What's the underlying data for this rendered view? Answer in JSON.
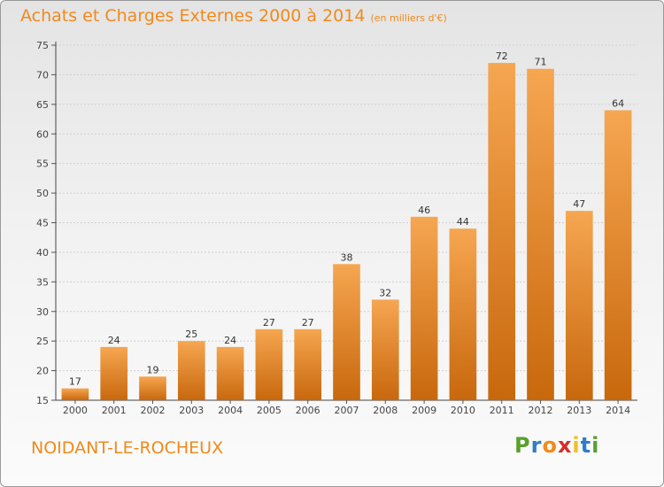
{
  "title": "Achats et Charges Externes 2000 à 2014",
  "subtitle": "(en milliers d'€)",
  "place": "NOIDANT-LE-ROCHEUX",
  "logo": {
    "letters": [
      "P",
      "r",
      "o",
      "x",
      "i",
      "t",
      "i"
    ],
    "colors": [
      "#5aa02c",
      "#2f7dc8",
      "#f08c1a",
      "#d2302a",
      "#f0c020",
      "#2f7dc8",
      "#5aa02c"
    ]
  },
  "colors": {
    "bar_top": "#f6a651",
    "bar_bottom": "#c8680d",
    "title": "#ef8a1c"
  },
  "chart_data": {
    "type": "bar",
    "categories": [
      "2000",
      "2001",
      "2002",
      "2003",
      "2004",
      "2005",
      "2006",
      "2007",
      "2008",
      "2009",
      "2010",
      "2011",
      "2012",
      "2013",
      "2014"
    ],
    "values": [
      17,
      24,
      19,
      25,
      24,
      27,
      27,
      38,
      32,
      46,
      44,
      72,
      71,
      47,
      64
    ],
    "title": "Achats et Charges Externes 2000 à 2014",
    "ylim": [
      15,
      75
    ],
    "yticks": [
      15,
      20,
      25,
      30,
      35,
      40,
      45,
      50,
      55,
      60,
      65,
      70,
      75
    ],
    "grid": true
  }
}
